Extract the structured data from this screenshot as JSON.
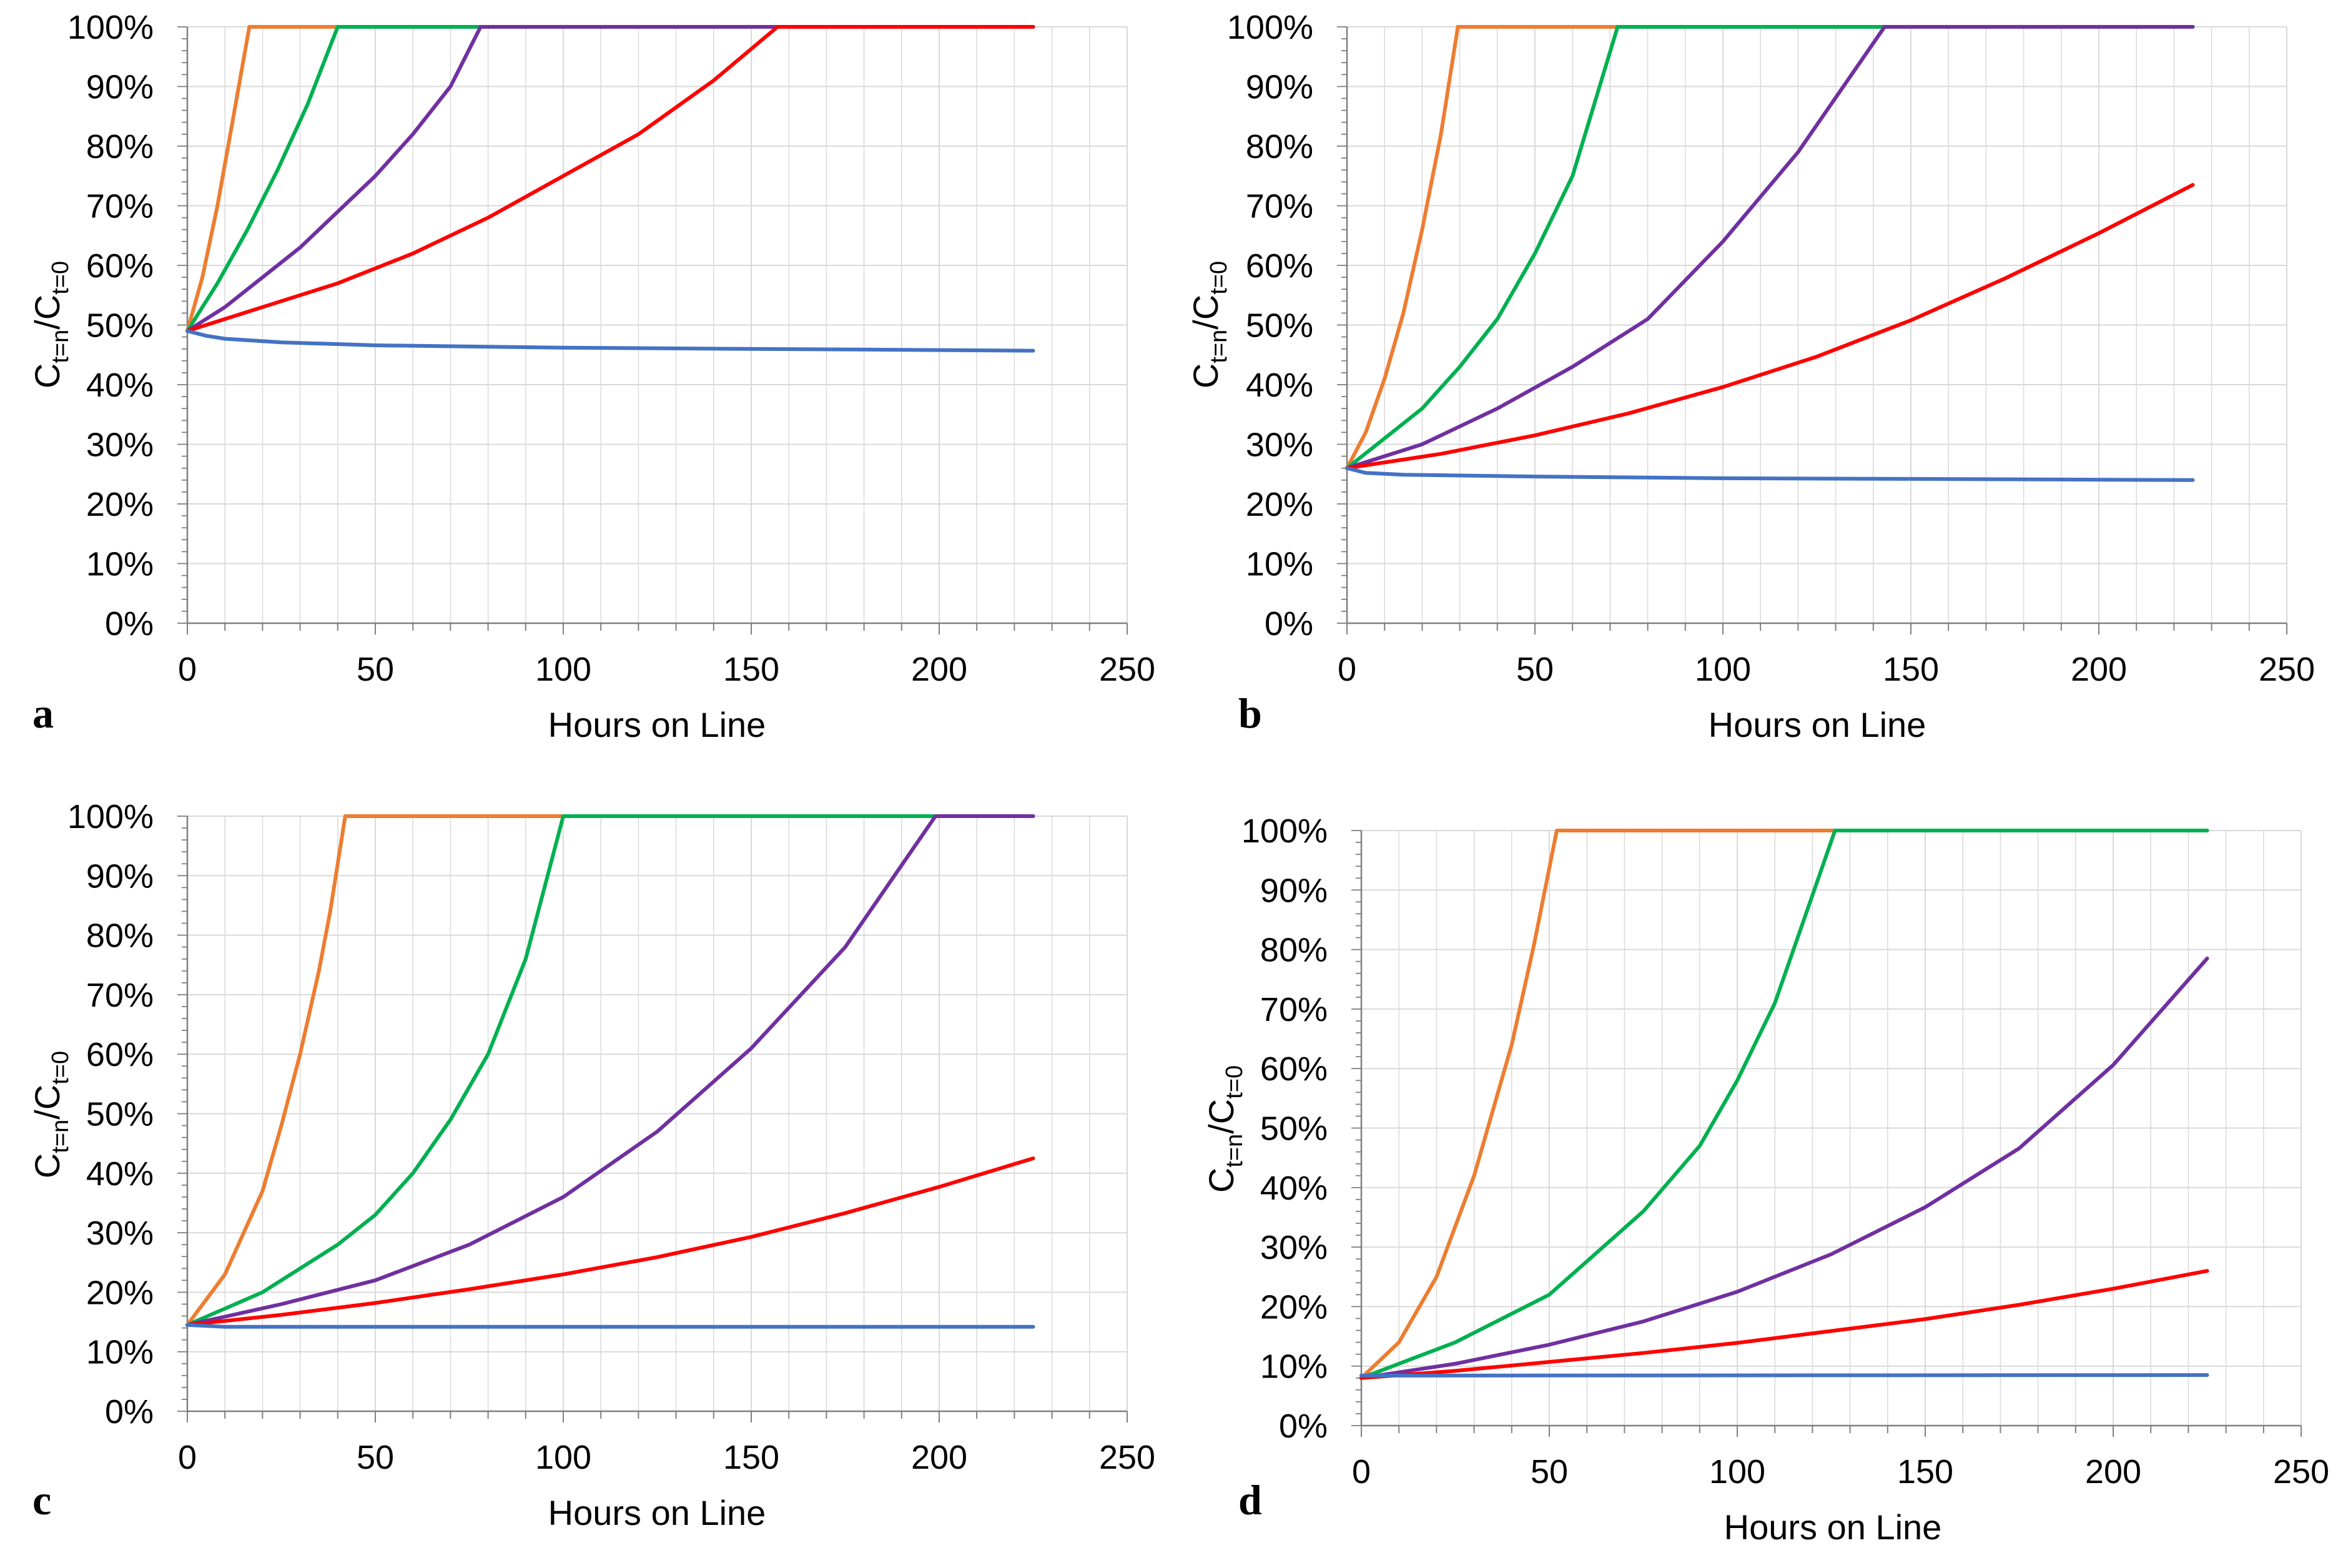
{
  "colors": {
    "series_orange": "#ED7D31",
    "series_green": "#00B050",
    "series_purple": "#7030A0",
    "series_red": "#FF0000",
    "series_blue": "#4472C4",
    "grid": "#D9D9D9",
    "axis": "#7F7F7F"
  },
  "chart_data": [
    {
      "panel_label": "a",
      "type": "line",
      "xlabel": "Hours on Line",
      "ylabel_main": "C",
      "ylabel_sub1": "t=n",
      "ylabel_mid": "/C",
      "ylabel_sub2": "t=0",
      "xlim": [
        0,
        250
      ],
      "ylim": [
        0,
        100
      ],
      "x_ticks": [
        "0",
        "50",
        "100",
        "150",
        "200",
        "250"
      ],
      "y_ticks": [
        "0%",
        "10%",
        "20%",
        "30%",
        "40%",
        "50%",
        "60%",
        "70%",
        "80%",
        "90%",
        "100%"
      ],
      "grid": true,
      "series": [
        {
          "color": "#ED7D31",
          "x": [
            0,
            4,
            8,
            12,
            16.5,
            225
          ],
          "y": [
            49,
            58,
            70,
            84,
            100,
            100
          ]
        },
        {
          "color": "#00B050",
          "x": [
            0,
            8,
            16,
            24,
            32,
            40,
            225
          ],
          "y": [
            49,
            57,
            66,
            76,
            87,
            100,
            100
          ]
        },
        {
          "color": "#7030A0",
          "x": [
            0,
            10,
            20,
            30,
            40,
            50,
            60,
            70,
            78,
            225
          ],
          "y": [
            49,
            53,
            58,
            63,
            69,
            75,
            82,
            90,
            100,
            100
          ]
        },
        {
          "color": "#FF0000",
          "x": [
            0,
            20,
            40,
            60,
            80,
            100,
            120,
            140,
            157,
            225
          ],
          "y": [
            49,
            53,
            57,
            62,
            68,
            75,
            82,
            91,
            100,
            100
          ]
        },
        {
          "color": "#4472C4",
          "x": [
            0,
            5,
            10,
            25,
            50,
            100,
            150,
            200,
            225
          ],
          "y": [
            49,
            48.2,
            47.7,
            47.1,
            46.6,
            46.2,
            46,
            45.8,
            45.7
          ]
        }
      ]
    },
    {
      "panel_label": "b",
      "type": "line",
      "xlabel": "Hours on Line",
      "ylabel_main": "C",
      "ylabel_sub1": "t=n",
      "ylabel_mid": "/C",
      "ylabel_sub2": "t=0",
      "xlim": [
        0,
        250
      ],
      "ylim": [
        0,
        100
      ],
      "x_ticks": [
        "0",
        "50",
        "100",
        "150",
        "200",
        "250"
      ],
      "y_ticks": [
        "0%",
        "10%",
        "20%",
        "30%",
        "40%",
        "50%",
        "60%",
        "70%",
        "80%",
        "90%",
        "100%"
      ],
      "grid": true,
      "series": [
        {
          "color": "#ED7D31",
          "x": [
            0,
            5,
            10,
            15,
            20,
            25,
            29.5,
            225
          ],
          "y": [
            26,
            32,
            41,
            52,
            66,
            82,
            100,
            100
          ]
        },
        {
          "color": "#00B050",
          "x": [
            0,
            10,
            20,
            30,
            40,
            50,
            60,
            72,
            225
          ],
          "y": [
            26,
            31,
            36,
            43,
            51,
            62,
            75,
            100,
            100
          ]
        },
        {
          "color": "#7030A0",
          "x": [
            0,
            20,
            40,
            60,
            80,
            100,
            120,
            143,
            225
          ],
          "y": [
            26,
            30,
            36,
            43,
            51,
            64,
            79,
            100,
            100
          ]
        },
        {
          "color": "#FF0000",
          "x": [
            0,
            25,
            50,
            75,
            100,
            125,
            150,
            175,
            200,
            225
          ],
          "y": [
            26,
            28.4,
            31.5,
            35.2,
            39.6,
            44.7,
            50.8,
            57.8,
            65.4,
            73.5
          ]
        },
        {
          "color": "#4472C4",
          "x": [
            0,
            5,
            15,
            50,
            100,
            150,
            225
          ],
          "y": [
            26,
            25.2,
            24.9,
            24.6,
            24.3,
            24.2,
            24
          ]
        }
      ]
    },
    {
      "panel_label": "c",
      "type": "line",
      "xlabel": "Hours on Line",
      "ylabel_main": "C",
      "ylabel_sub1": "t=n",
      "ylabel_mid": "/C",
      "ylabel_sub2": "t=0",
      "xlim": [
        0,
        250
      ],
      "ylim": [
        0,
        100
      ],
      "x_ticks": [
        "0",
        "50",
        "100",
        "150",
        "200",
        "250"
      ],
      "y_ticks": [
        "0%",
        "10%",
        "20%",
        "30%",
        "40%",
        "50%",
        "60%",
        "70%",
        "80%",
        "90%",
        "100%"
      ],
      "grid": true,
      "series": [
        {
          "color": "#ED7D31",
          "x": [
            0,
            10,
            20,
            25,
            30,
            35,
            38,
            42,
            225
          ],
          "y": [
            14.5,
            23,
            37,
            48,
            60,
            74,
            84,
            100,
            100
          ]
        },
        {
          "color": "#00B050",
          "x": [
            0,
            20,
            40,
            50,
            60,
            70,
            80,
            90,
            100,
            225
          ],
          "y": [
            14.5,
            20,
            28,
            33,
            40,
            49,
            60,
            76,
            100,
            100
          ]
        },
        {
          "color": "#7030A0",
          "x": [
            0,
            25,
            50,
            75,
            100,
            125,
            150,
            175,
            199,
            225
          ],
          "y": [
            14.5,
            18,
            22,
            28,
            36,
            47,
            61,
            78,
            100,
            100
          ]
        },
        {
          "color": "#FF0000",
          "x": [
            0,
            25,
            50,
            75,
            100,
            125,
            150,
            175,
            200,
            225
          ],
          "y": [
            14.5,
            16.2,
            18.2,
            20.5,
            23,
            25.9,
            29.3,
            33.3,
            37.7,
            42.5
          ]
        },
        {
          "color": "#4472C4",
          "x": [
            0,
            10,
            225
          ],
          "y": [
            14.5,
            14.2,
            14.2
          ]
        }
      ]
    },
    {
      "panel_label": "d",
      "type": "line",
      "xlabel": "Hours on Line",
      "ylabel_main": "C",
      "ylabel_sub1": "t=n",
      "ylabel_mid": "/C",
      "ylabel_sub2": "t=0",
      "xlim": [
        0,
        250
      ],
      "ylim": [
        0,
        100
      ],
      "x_ticks": [
        "0",
        "50",
        "100",
        "150",
        "200",
        "250"
      ],
      "y_ticks": [
        "0%",
        "10%",
        "20%",
        "30%",
        "40%",
        "50%",
        "60%",
        "70%",
        "80%",
        "90%",
        "100%"
      ],
      "grid": true,
      "series": [
        {
          "color": "#ED7D31",
          "x": [
            0,
            10,
            20,
            30,
            40,
            46,
            52,
            225
          ],
          "y": [
            8,
            14,
            25,
            42,
            64,
            81,
            100,
            100
          ]
        },
        {
          "color": "#00B050",
          "x": [
            0,
            25,
            50,
            75,
            90,
            100,
            110,
            126,
            225
          ],
          "y": [
            8,
            14,
            22,
            36,
            47,
            58,
            71,
            100,
            100
          ]
        },
        {
          "color": "#7030A0",
          "x": [
            0,
            25,
            50,
            75,
            100,
            125,
            150,
            175,
            200,
            225
          ],
          "y": [
            8,
            10.4,
            13.6,
            17.5,
            22.5,
            28.8,
            36.7,
            46.6,
            60.6,
            78.5
          ]
        },
        {
          "color": "#FF0000",
          "x": [
            0,
            25,
            50,
            75,
            100,
            125,
            150,
            175,
            200,
            225
          ],
          "y": [
            8,
            9.2,
            10.7,
            12.2,
            13.9,
            15.9,
            17.9,
            20.3,
            23,
            26
          ]
        },
        {
          "color": "#4472C4",
          "x": [
            0,
            225
          ],
          "y": [
            8.4,
            8.5
          ]
        }
      ]
    }
  ]
}
